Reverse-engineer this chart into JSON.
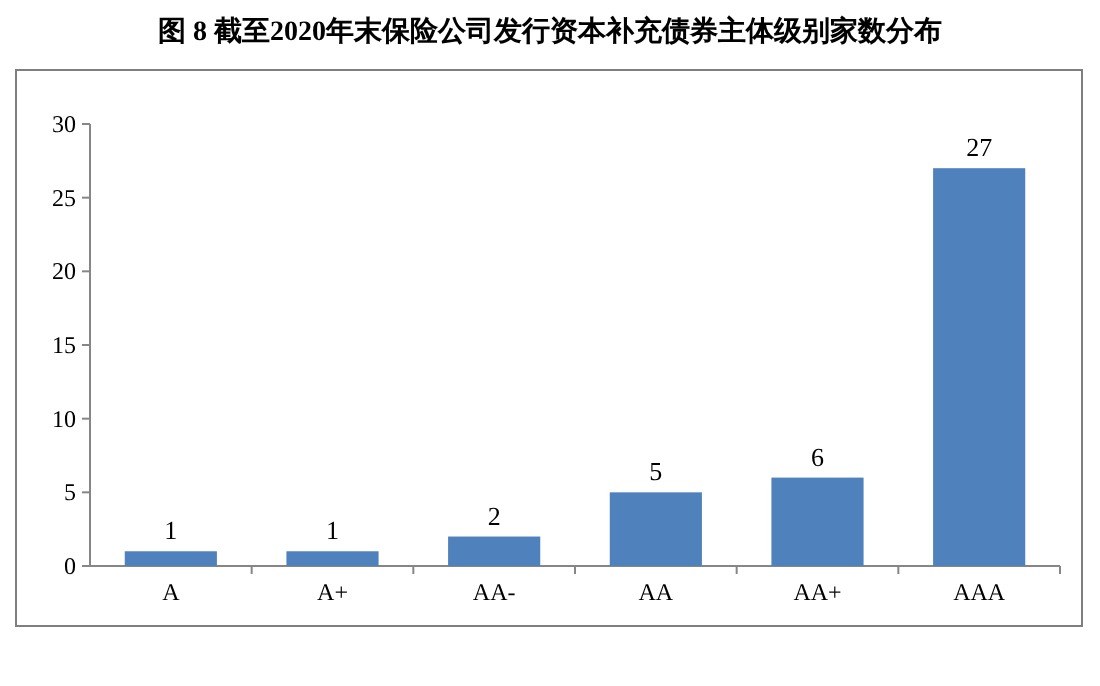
{
  "chart_data": {
    "type": "bar",
    "title": "图 8  截至2020年末保险公司发行资本补充债券主体级别家数分布",
    "categories": [
      "A",
      "A+",
      "AA-",
      "AA",
      "AA+",
      "AAA"
    ],
    "values": [
      1,
      1,
      2,
      5,
      6,
      27
    ],
    "color": "#4f81bd",
    "ylim": [
      0,
      30
    ],
    "yticks": [
      0,
      5,
      10,
      15,
      20,
      25,
      30
    ],
    "data_labels": true
  }
}
